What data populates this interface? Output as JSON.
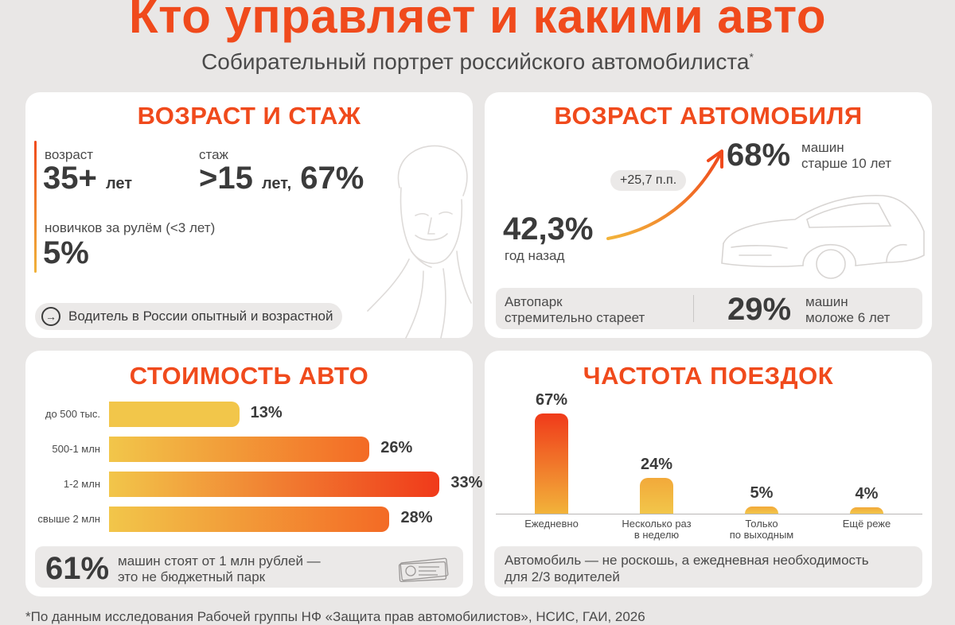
{
  "header": {
    "title": "Кто управляет и какими авто",
    "subtitle": "Собирательный портрет российского автомобилиста",
    "subtitle_mark": "*"
  },
  "age_card": {
    "title": "ВОЗРАСТ И СТАЖ",
    "age_label": "возраст",
    "age_value": "35+",
    "age_unit": "лет",
    "exp_label": "стаж",
    "exp_value": ">15",
    "exp_unit": "лет,",
    "exp_share": "67%",
    "novice_label": "новичков за рулём (<3 лет)",
    "novice_value": "5%",
    "conclusion": "Водитель в России опытный и возрастной",
    "arrow_icon": "arrow-right-circle-icon",
    "illustration": "driver-portrait-illustration"
  },
  "car_age_card": {
    "title": "ВОЗРАСТ АВТОМОБИЛЯ",
    "past_value": "42,3%",
    "past_label": "год назад",
    "delta": "+25,7 п.п.",
    "now_value": "68%",
    "now_label_1": "машин",
    "now_label_2": "старше 10 лет",
    "fleet_1": "Автопарк",
    "fleet_2": "стремительно стареет",
    "young_value": "29%",
    "young_label_1": "машин",
    "young_label_2": "моложе 6 лет",
    "illustration": "car-outline-illustration"
  },
  "cost_card": {
    "title": "СТОИМОСТЬ АВТО",
    "summary_value": "61%",
    "summary_1": "машин стоят от 1 млн рублей —",
    "summary_2": "это не бюджетный парк",
    "illustration": "banknotes-icon"
  },
  "freq_card": {
    "title": "ЧАСТОТА ПОЕЗДОК",
    "note_1": "Автомобиль — не роскошь, а ежедневная необходимость",
    "note_2": "для 2/3 водителей"
  },
  "chart_data": [
    {
      "type": "bar",
      "orientation": "horizontal",
      "title": "СТОИМОСТЬ АВТО",
      "categories": [
        "до 500 тыс.",
        "500-1 млн",
        "1-2 млн",
        "свыше 2 млн"
      ],
      "values": [
        13,
        26,
        33,
        28
      ],
      "labels": [
        "13%",
        "26%",
        "33%",
        "28%"
      ],
      "colors": [
        "#f2c64a",
        "#f36a25",
        "#f03a1a",
        "#f36a25"
      ]
    },
    {
      "type": "bar",
      "orientation": "vertical",
      "title": "ЧАСТОТА ПОЕЗДОК",
      "categories": [
        "Ежедневно",
        "Несколько раз в неделю",
        "Только по выходным",
        "Ещё реже"
      ],
      "category_lines": [
        [
          "Ежедневно"
        ],
        [
          "Несколько раз",
          "в неделю"
        ],
        [
          "Только",
          "по выходным"
        ],
        [
          "Ещё реже"
        ]
      ],
      "values": [
        67,
        24,
        5,
        4
      ],
      "labels": [
        "67%",
        "24%",
        "5%",
        "4%"
      ]
    }
  ],
  "footer": {
    "text": "*По данным исследования Рабочей группы НФ «Защита прав автомобилистов», НСИС, ГАИ, 2026"
  },
  "colors": {
    "accent": "#f04a1c",
    "background": "#e9e7e6",
    "card": "#ffffff",
    "muted": "#ebe9e8"
  }
}
